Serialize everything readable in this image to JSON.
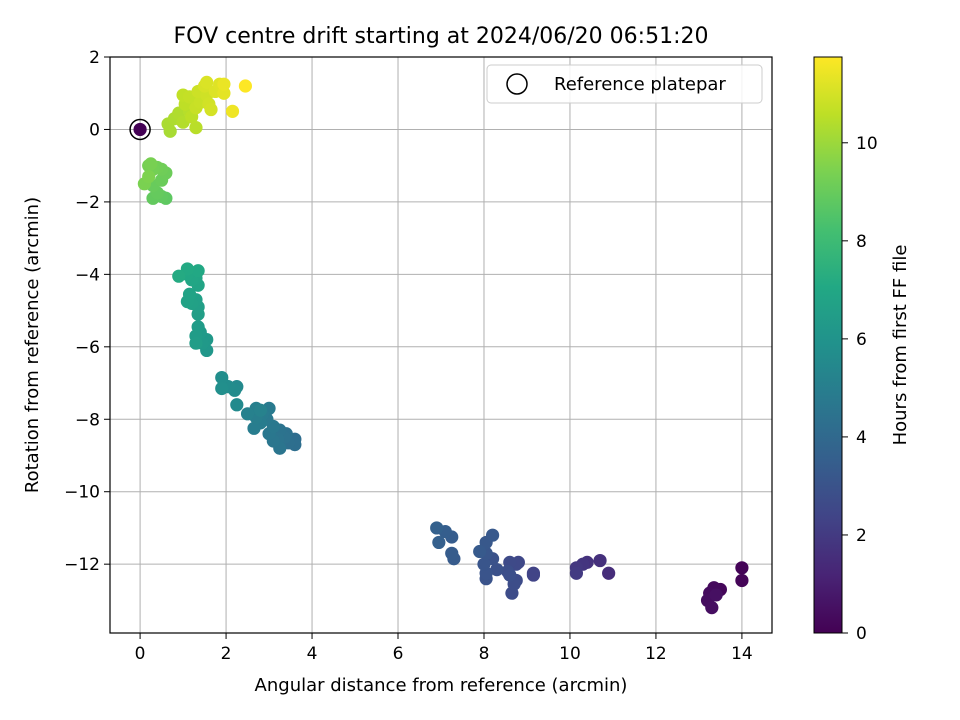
{
  "chart_data": {
    "type": "scatter",
    "title": "FOV centre drift starting at 2024/06/20 06:51:20",
    "xlabel": "Angular distance from reference (arcmin)",
    "ylabel": "Rotation from reference (arcmin)",
    "xlim": [
      -0.7,
      14.7
    ],
    "ylim": [
      -13.9,
      2
    ],
    "xticks": [
      0,
      2,
      4,
      6,
      8,
      10,
      12,
      14
    ],
    "yticks": [
      2,
      0,
      -2,
      -4,
      -6,
      -8,
      -10,
      -12
    ],
    "xtick_labels": [
      "0",
      "2",
      "4",
      "6",
      "8",
      "10",
      "12",
      "14"
    ],
    "ytick_labels": [
      "2",
      "0",
      "−2",
      "−4",
      "−6",
      "−8",
      "−10",
      "−12"
    ],
    "grid": true,
    "legend": {
      "position": "top-right",
      "entries": [
        "Reference platepar"
      ]
    },
    "colorbar": {
      "label": "Hours from first FF file",
      "range": [
        0,
        11.75
      ],
      "ticks": [
        0,
        2,
        4,
        6,
        8,
        10
      ],
      "tick_labels": [
        "0",
        "2",
        "4",
        "6",
        "8",
        "10"
      ],
      "colormap": "viridis"
    },
    "reference": {
      "x": 0,
      "y": 0,
      "hours": 0.05
    },
    "points": [
      {
        "x": 14.0,
        "y": -12.1,
        "h": 0.1
      },
      {
        "x": 14.0,
        "y": -12.45,
        "h": 0.15
      },
      {
        "x": 13.5,
        "y": -12.7,
        "h": 0.2
      },
      {
        "x": 13.35,
        "y": -12.65,
        "h": 0.3
      },
      {
        "x": 13.25,
        "y": -12.8,
        "h": 0.35
      },
      {
        "x": 13.2,
        "y": -13.0,
        "h": 0.4
      },
      {
        "x": 13.3,
        "y": -13.2,
        "h": 0.45
      },
      {
        "x": 13.4,
        "y": -12.85,
        "h": 0.5
      },
      {
        "x": 10.9,
        "y": -12.25,
        "h": 1.5
      },
      {
        "x": 10.7,
        "y": -11.9,
        "h": 1.6
      },
      {
        "x": 10.4,
        "y": -11.95,
        "h": 1.7
      },
      {
        "x": 10.3,
        "y": -12.0,
        "h": 1.8
      },
      {
        "x": 10.15,
        "y": -12.1,
        "h": 1.9
      },
      {
        "x": 10.15,
        "y": -12.25,
        "h": 2.0
      },
      {
        "x": 9.15,
        "y": -12.25,
        "h": 2.3
      },
      {
        "x": 9.15,
        "y": -12.3,
        "h": 2.35
      },
      {
        "x": 8.8,
        "y": -11.95,
        "h": 2.5
      },
      {
        "x": 8.75,
        "y": -12.0,
        "h": 2.55
      },
      {
        "x": 8.6,
        "y": -11.95,
        "h": 2.6
      },
      {
        "x": 8.75,
        "y": -12.45,
        "h": 2.65
      },
      {
        "x": 8.65,
        "y": -12.8,
        "h": 2.7
      },
      {
        "x": 8.7,
        "y": -12.55,
        "h": 2.75
      },
      {
        "x": 8.55,
        "y": -12.2,
        "h": 2.8
      },
      {
        "x": 8.6,
        "y": -12.3,
        "h": 2.85
      },
      {
        "x": 8.3,
        "y": -12.15,
        "h": 2.9
      },
      {
        "x": 8.2,
        "y": -11.85,
        "h": 2.95
      },
      {
        "x": 8.05,
        "y": -12.4,
        "h": 3.0
      },
      {
        "x": 8.05,
        "y": -12.25,
        "h": 3.05
      },
      {
        "x": 8.0,
        "y": -12.0,
        "h": 3.1
      },
      {
        "x": 8.05,
        "y": -11.7,
        "h": 3.15
      },
      {
        "x": 8.05,
        "y": -11.4,
        "h": 3.2
      },
      {
        "x": 8.2,
        "y": -11.2,
        "h": 3.25
      },
      {
        "x": 7.9,
        "y": -11.65,
        "h": 3.3
      },
      {
        "x": 7.3,
        "y": -11.85,
        "h": 3.35
      },
      {
        "x": 7.25,
        "y": -11.7,
        "h": 3.4
      },
      {
        "x": 7.25,
        "y": -11.25,
        "h": 3.45
      },
      {
        "x": 7.1,
        "y": -11.1,
        "h": 3.5
      },
      {
        "x": 6.95,
        "y": -11.4,
        "h": 3.55
      },
      {
        "x": 6.9,
        "y": -11.0,
        "h": 3.6
      },
      {
        "x": 3.6,
        "y": -8.55,
        "h": 4.2
      },
      {
        "x": 3.6,
        "y": -8.7,
        "h": 4.25
      },
      {
        "x": 3.45,
        "y": -8.65,
        "h": 4.3
      },
      {
        "x": 3.4,
        "y": -8.4,
        "h": 4.35
      },
      {
        "x": 3.35,
        "y": -8.5,
        "h": 4.4
      },
      {
        "x": 3.25,
        "y": -8.3,
        "h": 4.45
      },
      {
        "x": 3.2,
        "y": -8.55,
        "h": 4.5
      },
      {
        "x": 3.25,
        "y": -8.8,
        "h": 4.55
      },
      {
        "x": 3.1,
        "y": -8.6,
        "h": 4.6
      },
      {
        "x": 3.0,
        "y": -8.4,
        "h": 4.65
      },
      {
        "x": 3.1,
        "y": -8.2,
        "h": 4.7
      },
      {
        "x": 2.95,
        "y": -8.0,
        "h": 4.75
      },
      {
        "x": 3.0,
        "y": -7.7,
        "h": 4.8
      },
      {
        "x": 2.85,
        "y": -7.85,
        "h": 4.85
      },
      {
        "x": 2.8,
        "y": -8.1,
        "h": 4.9
      },
      {
        "x": 2.65,
        "y": -8.25,
        "h": 4.95
      },
      {
        "x": 2.7,
        "y": -7.95,
        "h": 5.0
      },
      {
        "x": 2.7,
        "y": -7.7,
        "h": 5.05
      },
      {
        "x": 2.5,
        "y": -7.85,
        "h": 5.1
      },
      {
        "x": 2.8,
        "y": -7.75,
        "h": 5.15
      },
      {
        "x": 2.25,
        "y": -7.1,
        "h": 5.5
      },
      {
        "x": 2.25,
        "y": -7.6,
        "h": 5.55
      },
      {
        "x": 2.2,
        "y": -7.2,
        "h": 5.6
      },
      {
        "x": 2.05,
        "y": -7.1,
        "h": 5.65
      },
      {
        "x": 1.95,
        "y": -7.05,
        "h": 5.7
      },
      {
        "x": 1.9,
        "y": -6.85,
        "h": 5.75
      },
      {
        "x": 1.9,
        "y": -7.15,
        "h": 5.8
      },
      {
        "x": 1.55,
        "y": -6.1,
        "h": 6.2
      },
      {
        "x": 1.55,
        "y": -5.8,
        "h": 6.25
      },
      {
        "x": 1.45,
        "y": -5.9,
        "h": 6.3
      },
      {
        "x": 1.4,
        "y": -5.6,
        "h": 6.35
      },
      {
        "x": 1.35,
        "y": -5.45,
        "h": 6.4
      },
      {
        "x": 1.3,
        "y": -5.7,
        "h": 6.45
      },
      {
        "x": 1.3,
        "y": -5.9,
        "h": 6.5
      },
      {
        "x": 1.35,
        "y": -5.1,
        "h": 6.55
      },
      {
        "x": 1.35,
        "y": -4.9,
        "h": 6.6
      },
      {
        "x": 1.3,
        "y": -4.7,
        "h": 6.65
      },
      {
        "x": 1.2,
        "y": -4.8,
        "h": 6.7
      },
      {
        "x": 1.1,
        "y": -4.75,
        "h": 6.75
      },
      {
        "x": 1.15,
        "y": -4.55,
        "h": 6.8
      },
      {
        "x": 1.35,
        "y": -4.3,
        "h": 6.85
      },
      {
        "x": 1.3,
        "y": -4.1,
        "h": 6.9
      },
      {
        "x": 1.2,
        "y": -4.15,
        "h": 6.95
      },
      {
        "x": 1.1,
        "y": -4.0,
        "h": 7.0
      },
      {
        "x": 1.35,
        "y": -3.9,
        "h": 7.05
      },
      {
        "x": 1.1,
        "y": -3.85,
        "h": 7.1
      },
      {
        "x": 0.9,
        "y": -4.05,
        "h": 7.15
      },
      {
        "x": 0.6,
        "y": -1.9,
        "h": 8.8
      },
      {
        "x": 0.5,
        "y": -1.85,
        "h": 8.85
      },
      {
        "x": 0.3,
        "y": -1.9,
        "h": 8.9
      },
      {
        "x": 0.4,
        "y": -1.75,
        "h": 8.95
      },
      {
        "x": 0.3,
        "y": -1.55,
        "h": 9.0
      },
      {
        "x": 0.5,
        "y": -1.4,
        "h": 9.05
      },
      {
        "x": 0.6,
        "y": -1.2,
        "h": 9.1
      },
      {
        "x": 0.5,
        "y": -1.1,
        "h": 9.15
      },
      {
        "x": 0.4,
        "y": -1.05,
        "h": 9.2
      },
      {
        "x": 0.3,
        "y": -1.1,
        "h": 9.25
      },
      {
        "x": 0.2,
        "y": -1.0,
        "h": 9.3
      },
      {
        "x": 0.25,
        "y": -0.95,
        "h": 9.35
      },
      {
        "x": 0.1,
        "y": -1.5,
        "h": 9.4
      },
      {
        "x": 0.2,
        "y": -1.3,
        "h": 9.45
      },
      {
        "x": 0.7,
        "y": -0.05,
        "h": 10.2
      },
      {
        "x": 0.65,
        "y": 0.15,
        "h": 10.25
      },
      {
        "x": 0.8,
        "y": 0.3,
        "h": 10.3
      },
      {
        "x": 0.9,
        "y": 0.45,
        "h": 10.35
      },
      {
        "x": 1.0,
        "y": 0.2,
        "h": 10.4
      },
      {
        "x": 1.15,
        "y": 0.5,
        "h": 10.45
      },
      {
        "x": 1.3,
        "y": 0.05,
        "h": 10.5
      },
      {
        "x": 1.2,
        "y": 0.35,
        "h": 10.55
      },
      {
        "x": 1.05,
        "y": 0.7,
        "h": 10.6
      },
      {
        "x": 1.0,
        "y": 0.95,
        "h": 10.65
      },
      {
        "x": 1.15,
        "y": 0.9,
        "h": 10.7
      },
      {
        "x": 1.3,
        "y": 0.6,
        "h": 10.75
      },
      {
        "x": 1.4,
        "y": 0.75,
        "h": 10.8
      },
      {
        "x": 1.35,
        "y": 1.05,
        "h": 10.85
      },
      {
        "x": 1.55,
        "y": 0.95,
        "h": 10.9
      },
      {
        "x": 1.6,
        "y": 0.7,
        "h": 10.95
      },
      {
        "x": 1.65,
        "y": 0.55,
        "h": 11.0
      },
      {
        "x": 1.5,
        "y": 1.2,
        "h": 11.05
      },
      {
        "x": 1.55,
        "y": 1.3,
        "h": 11.1
      },
      {
        "x": 1.75,
        "y": 1.05,
        "h": 11.15
      },
      {
        "x": 1.85,
        "y": 1.25,
        "h": 11.2
      },
      {
        "x": 1.95,
        "y": 1.0,
        "h": 11.3
      },
      {
        "x": 1.95,
        "y": 1.25,
        "h": 11.4
      },
      {
        "x": 2.15,
        "y": 0.5,
        "h": 11.5
      },
      {
        "x": 2.45,
        "y": 1.2,
        "h": 11.75
      }
    ]
  }
}
